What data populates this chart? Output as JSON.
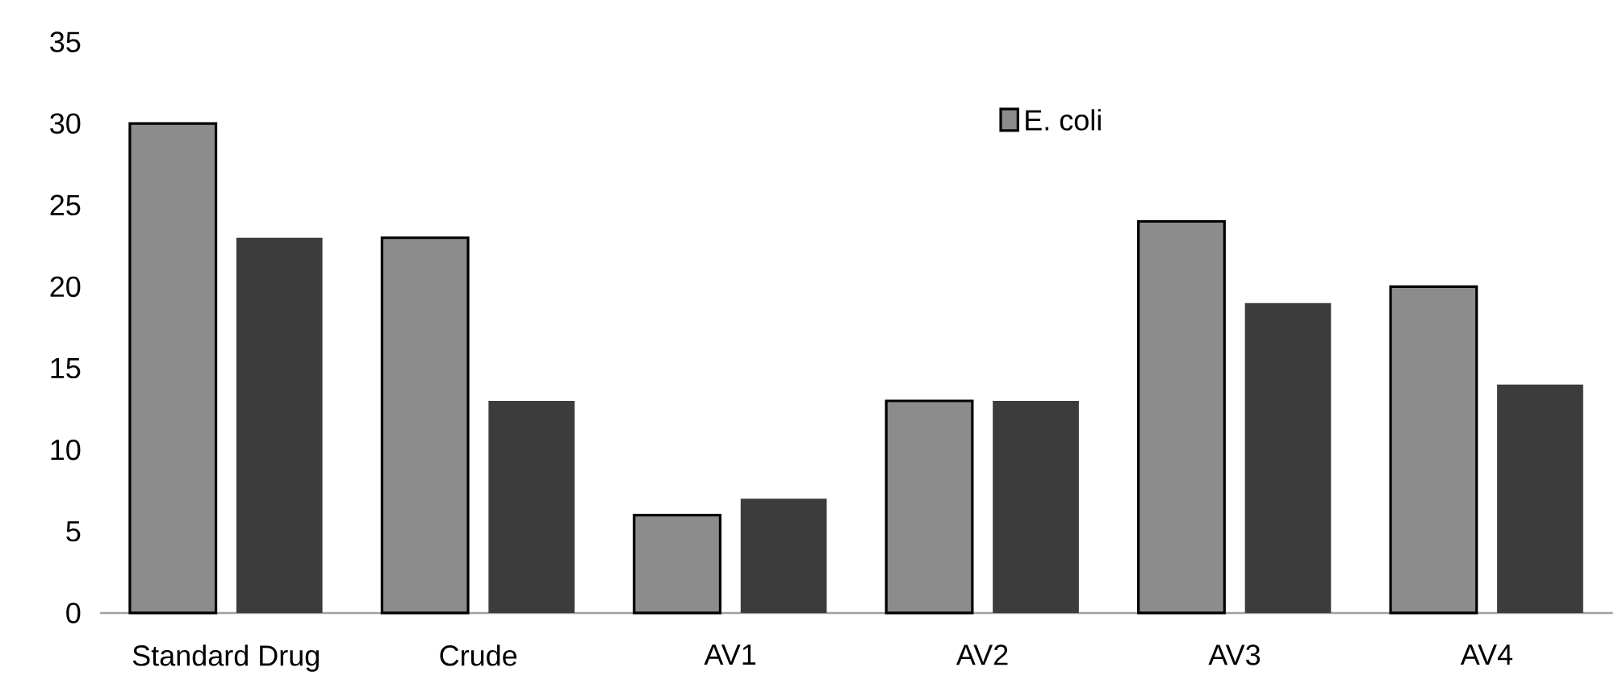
{
  "chart_data": {
    "type": "bar",
    "categories": [
      "Standard Drug",
      "Crude",
      "AV1",
      "AV2",
      "AV3",
      "AV4"
    ],
    "series": [
      {
        "name": "E. coli",
        "color": "#8c8c8c",
        "values": [
          30,
          23,
          6,
          13,
          24,
          20
        ]
      },
      {
        "color": "#3c3c3c",
        "values": [
          23,
          13,
          7,
          13,
          19,
          14
        ]
      }
    ],
    "ylim": [
      0,
      35
    ],
    "yticks": [
      0,
      5,
      10,
      15,
      20,
      25,
      30,
      35
    ],
    "legend": "top"
  }
}
